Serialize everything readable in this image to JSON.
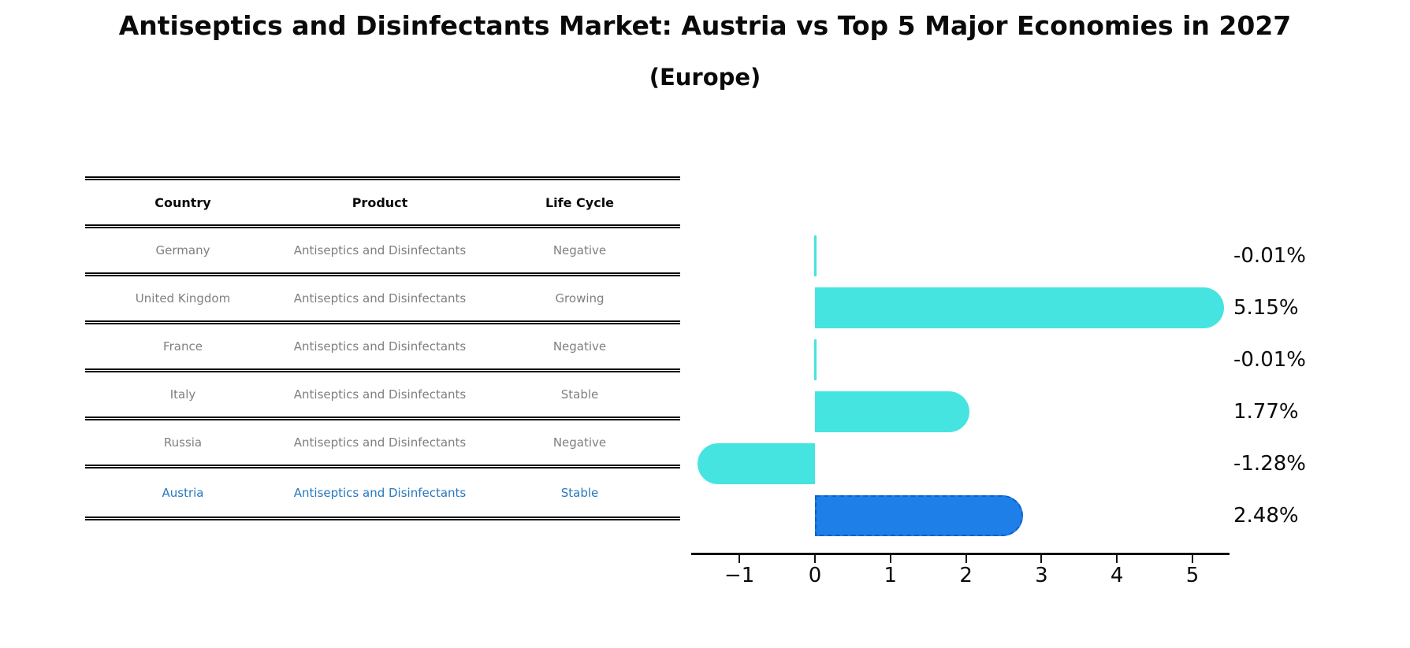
{
  "title": "Antiseptics and Disinfectants Market: Austria vs Top 5 Major Economies in 2027",
  "subtitle": "(Europe)",
  "table": {
    "headers": [
      "Country",
      "Product",
      "Life Cycle"
    ]
  },
  "rows": [
    {
      "country": "Germany",
      "product": "Antiseptics and Disinfectants",
      "life_cycle": "Negative",
      "value": -0.01,
      "value_label": "-0.01%",
      "highlight": false
    },
    {
      "country": "United Kingdom",
      "product": "Antiseptics and Disinfectants",
      "life_cycle": "Growing",
      "value": 5.15,
      "value_label": "5.15%",
      "highlight": false
    },
    {
      "country": "France",
      "product": "Antiseptics and Disinfectants",
      "life_cycle": "Negative",
      "value": -0.01,
      "value_label": "-0.01%",
      "highlight": false
    },
    {
      "country": "Italy",
      "product": "Antiseptics and Disinfectants",
      "life_cycle": "Stable",
      "value": 1.77,
      "value_label": "1.77%",
      "highlight": false
    },
    {
      "country": "Russia",
      "product": "Antiseptics and Disinfectants",
      "life_cycle": "Negative",
      "value": -1.28,
      "value_label": "-1.28%",
      "highlight": false
    },
    {
      "country": "Austria",
      "product": "Antiseptics and Disinfectants",
      "life_cycle": "Stable",
      "value": 2.48,
      "value_label": "2.48%",
      "highlight": true
    }
  ],
  "chart_data": {
    "type": "bar",
    "orientation": "horizontal",
    "title": "Antiseptics and Disinfectants Market: Austria vs Top 5 Major Economies in 2027 (Europe)",
    "categories": [
      "Germany",
      "United Kingdom",
      "France",
      "Italy",
      "Russia",
      "Austria"
    ],
    "values": [
      -0.01,
      5.15,
      -0.01,
      1.77,
      -1.28,
      2.48
    ],
    "data_labels": [
      "-0.01%",
      "5.15%",
      "-0.01%",
      "1.77%",
      "-1.28%",
      "2.48%"
    ],
    "x_ticks": [
      -1,
      0,
      1,
      2,
      3,
      4,
      5
    ],
    "x_tick_labels": [
      "−1",
      "0",
      "1",
      "2",
      "3",
      "4",
      "5"
    ],
    "xlim": [
      -1.65,
      5.5
    ],
    "grid": "off",
    "legend": "none",
    "bar_color": "#45e4e0",
    "highlight_color": "#1f7fe8",
    "highlight_index": 5,
    "highlight_text_color": "#2878bd"
  },
  "colors": {
    "background": "#ffffff",
    "axis": "#111111",
    "table_text": "#7f7f7f",
    "header_text": "#0a0a0a",
    "highlight_text": "#2878bd"
  }
}
